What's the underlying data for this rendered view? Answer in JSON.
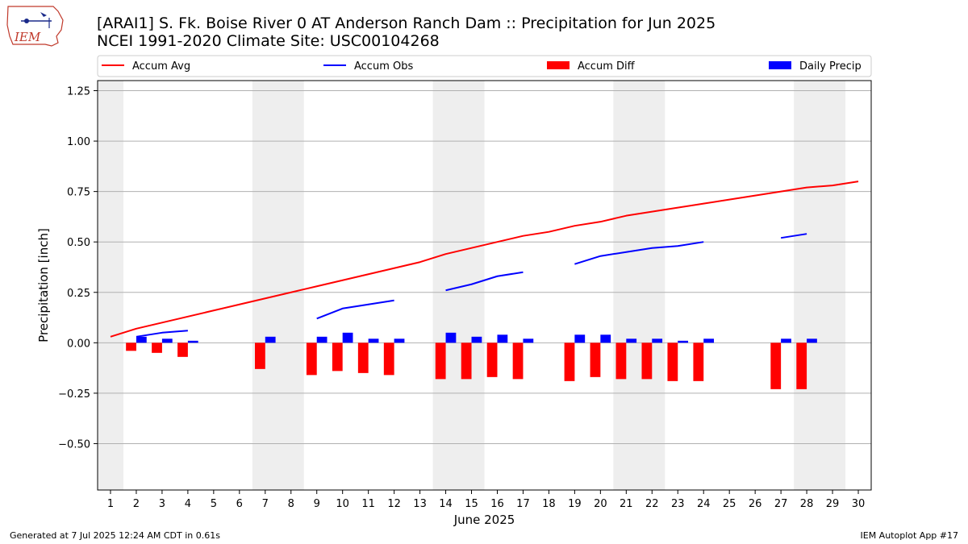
{
  "header": {
    "title_line1": "[ARAI1] S. Fk. Boise River 0 AT Anderson Ranch Dam :: Precipitation for Jun 2025",
    "title_line2": "NCEI 1991-2020 Climate Site: USC00104268",
    "logo_text": "IEM"
  },
  "footer": {
    "generated": "Generated at 7 Jul 2025 12:24 AM CDT in 0.61s",
    "app": "IEM Autoplot App #17"
  },
  "colors": {
    "avg": "#ff0000",
    "obs": "#0000ff",
    "diff": "#ff0000",
    "daily": "#0000ff",
    "weekend_shade": "#eeeeee",
    "grid": "#b0b0b0"
  },
  "chart_data": {
    "type": "bar",
    "title": "[ARAI1] S. Fk. Boise River 0 AT Anderson Ranch Dam :: Precipitation for Jun 2025",
    "xlabel": "June 2025",
    "ylabel": "Precipitation [inch]",
    "xlim": [
      0.5,
      30.5
    ],
    "ylim": [
      -0.73,
      1.3
    ],
    "yticks": [
      -0.5,
      -0.25,
      0.0,
      0.25,
      0.5,
      0.75,
      1.0,
      1.25
    ],
    "ytick_labels": [
      "−0.50",
      "−0.25",
      "0.00",
      "0.25",
      "0.50",
      "0.75",
      "1.00",
      "1.25"
    ],
    "xticks": [
      1,
      2,
      3,
      4,
      5,
      6,
      7,
      8,
      9,
      10,
      11,
      12,
      13,
      14,
      15,
      16,
      17,
      18,
      19,
      20,
      21,
      22,
      23,
      24,
      25,
      26,
      27,
      28,
      29,
      30
    ],
    "grid": "horizontal",
    "legend_position": "top",
    "weekend_shading": [
      [
        0.5,
        1.5
      ],
      [
        6.5,
        8.5
      ],
      [
        13.5,
        15.5
      ],
      [
        20.5,
        22.5
      ],
      [
        27.5,
        29.5
      ]
    ],
    "legend": [
      {
        "name": "Accum Avg",
        "kind": "line",
        "color": "#ff0000"
      },
      {
        "name": "Accum Obs",
        "kind": "line",
        "color": "#0000ff"
      },
      {
        "name": "Accum Diff",
        "kind": "bar",
        "color": "#ff0000"
      },
      {
        "name": "Daily Precip",
        "kind": "bar",
        "color": "#0000ff"
      }
    ],
    "series": [
      {
        "name": "Accum Avg",
        "kind": "line",
        "color": "#ff0000",
        "segments": [
          {
            "x": [
              1,
              2,
              3,
              4,
              5,
              6,
              7,
              8,
              9,
              10,
              11,
              12,
              13,
              14,
              15,
              16,
              17,
              18,
              19,
              20,
              21,
              22,
              23,
              24,
              25,
              26,
              27,
              28,
              29,
              30
            ],
            "y": [
              0.03,
              0.07,
              0.1,
              0.13,
              0.16,
              0.19,
              0.22,
              0.25,
              0.28,
              0.31,
              0.34,
              0.37,
              0.4,
              0.44,
              0.47,
              0.5,
              0.53,
              0.55,
              0.58,
              0.6,
              0.63,
              0.65,
              0.67,
              0.69,
              0.71,
              0.73,
              0.75,
              0.77,
              0.78,
              0.8
            ]
          }
        ]
      },
      {
        "name": "Accum Obs",
        "kind": "line",
        "color": "#0000ff",
        "segments": [
          {
            "x": [
              2,
              3,
              4
            ],
            "y": [
              0.03,
              0.05,
              0.06
            ]
          },
          {
            "x": [
              9,
              10,
              11,
              12
            ],
            "y": [
              0.12,
              0.17,
              0.19,
              0.21
            ]
          },
          {
            "x": [
              14,
              15,
              16,
              17
            ],
            "y": [
              0.26,
              0.29,
              0.33,
              0.35
            ]
          },
          {
            "x": [
              19,
              20,
              21,
              22,
              23,
              24
            ],
            "y": [
              0.39,
              0.43,
              0.45,
              0.47,
              0.48,
              0.5
            ]
          },
          {
            "x": [
              27,
              28
            ],
            "y": [
              0.52,
              0.54
            ]
          }
        ]
      },
      {
        "name": "Accum Diff",
        "kind": "bar",
        "color": "#ff0000",
        "offset": -0.2,
        "x": [
          2,
          3,
          4,
          7,
          9,
          10,
          11,
          12,
          14,
          15,
          16,
          17,
          19,
          20,
          21,
          22,
          23,
          24,
          27,
          28
        ],
        "values": [
          -0.04,
          -0.05,
          -0.07,
          -0.13,
          -0.16,
          -0.14,
          -0.15,
          -0.16,
          -0.18,
          -0.18,
          -0.17,
          -0.18,
          -0.19,
          -0.17,
          -0.18,
          -0.18,
          -0.19,
          -0.19,
          -0.23,
          -0.23
        ]
      },
      {
        "name": "Daily Precip",
        "kind": "bar",
        "color": "#0000ff",
        "offset": 0.2,
        "x": [
          2,
          3,
          4,
          7,
          9,
          10,
          11,
          12,
          14,
          15,
          16,
          17,
          19,
          20,
          21,
          22,
          23,
          24,
          27,
          28
        ],
        "values": [
          0.03,
          0.02,
          0.01,
          0.03,
          0.03,
          0.05,
          0.02,
          0.02,
          0.05,
          0.03,
          0.04,
          0.02,
          0.04,
          0.04,
          0.02,
          0.02,
          0.01,
          0.02,
          0.02,
          0.02
        ]
      }
    ]
  }
}
